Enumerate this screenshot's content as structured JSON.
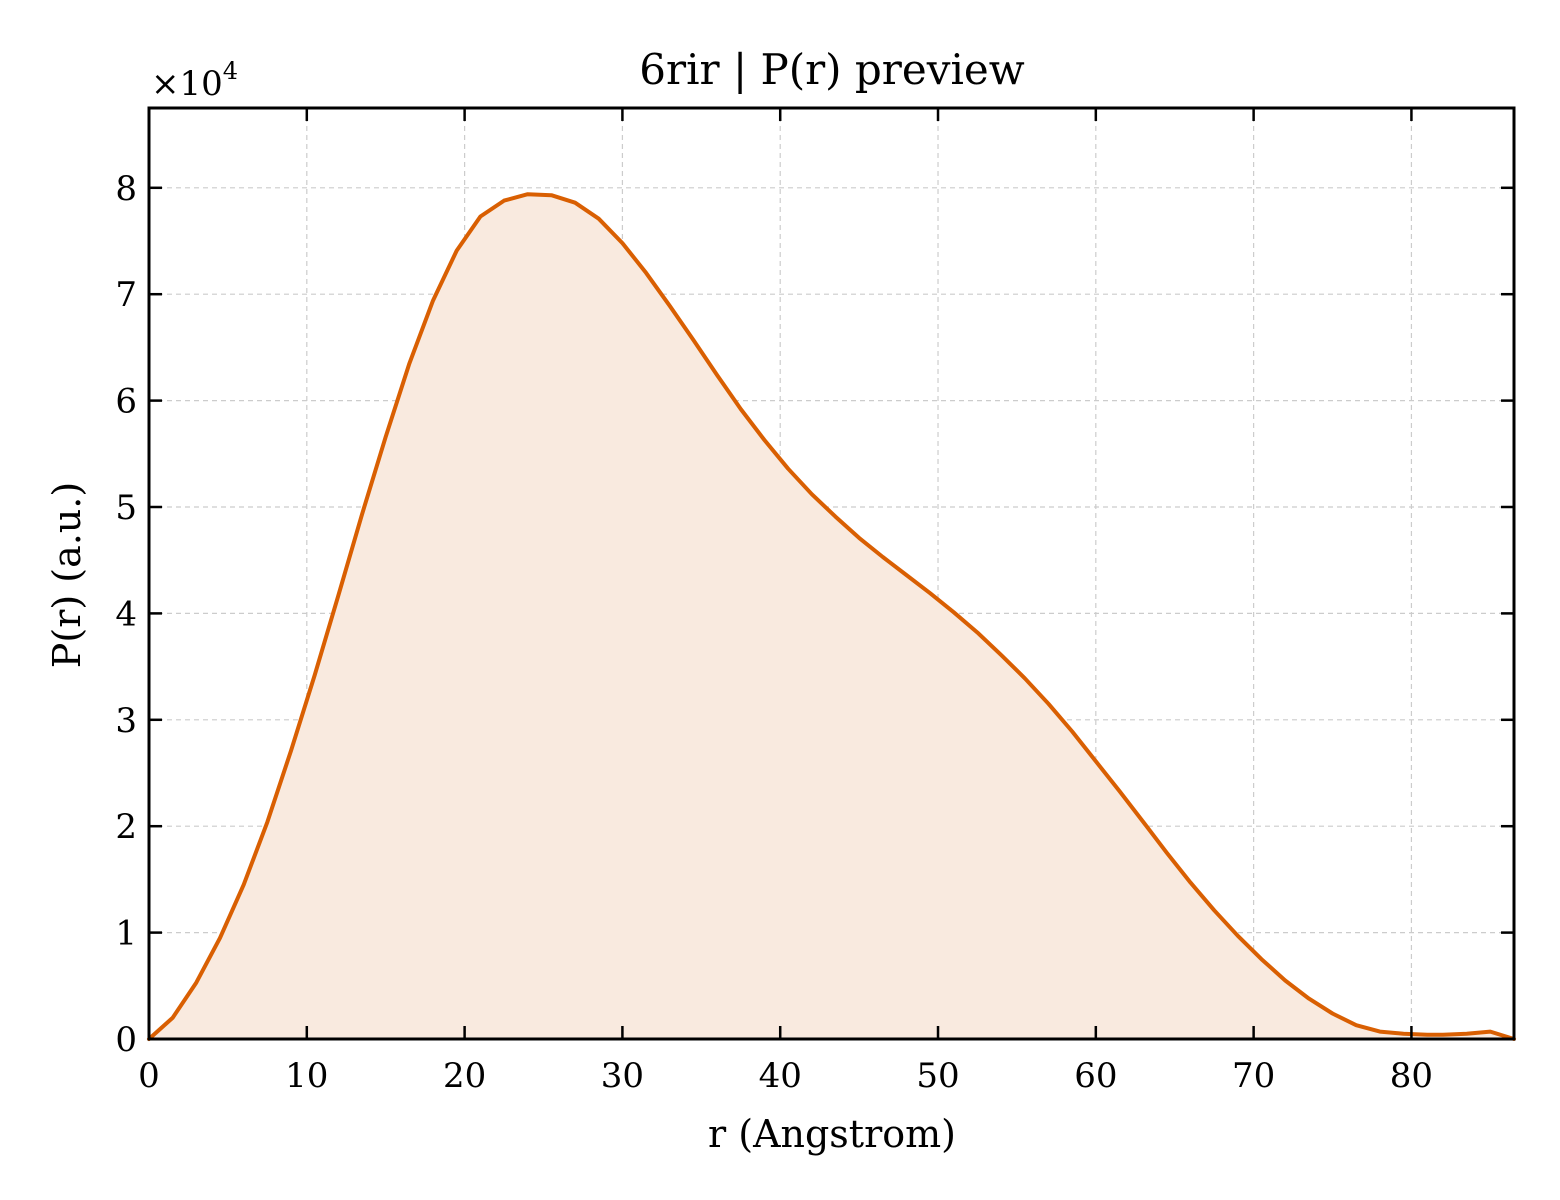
{
  "chart_data": {
    "type": "area",
    "title": "6rir | P(r) preview",
    "xlabel": "r (Angstrom)",
    "ylabel": "P(r) (a.u.)",
    "y_multiplier_label": "×10",
    "y_multiplier_exponent": "4",
    "xlim": [
      0,
      86.5
    ],
    "ylim": [
      0,
      8.75
    ],
    "x_ticks": [
      0,
      10,
      20,
      30,
      40,
      50,
      60,
      70,
      80
    ],
    "y_ticks": [
      0,
      1,
      2,
      3,
      4,
      5,
      6,
      7,
      8
    ],
    "grid": true,
    "line_color": "#d95f02",
    "fill_color": "#f9eadf",
    "x": [
      0,
      1.5,
      3.0,
      4.5,
      6.0,
      7.5,
      9.0,
      10.5,
      12.0,
      13.5,
      15.0,
      16.5,
      18.0,
      19.5,
      21.0,
      22.5,
      24.0,
      25.5,
      27.0,
      28.5,
      30.0,
      31.5,
      33.0,
      34.5,
      36.0,
      37.5,
      39.0,
      40.5,
      42.0,
      43.5,
      45.0,
      46.5,
      48.0,
      49.5,
      51.0,
      52.5,
      54.0,
      55.5,
      57.0,
      58.5,
      60.0,
      61.5,
      63.0,
      64.5,
      66.0,
      67.5,
      69.0,
      70.5,
      72.0,
      73.5,
      75.0,
      76.5,
      78.0,
      79.5,
      81.0,
      82.0,
      83.5,
      85.0,
      86.5
    ],
    "y": [
      0,
      0.2,
      0.53,
      0.95,
      1.45,
      2.04,
      2.71,
      3.42,
      4.17,
      4.93,
      5.66,
      6.35,
      6.94,
      7.41,
      7.73,
      7.88,
      7.94,
      7.93,
      7.86,
      7.71,
      7.48,
      7.2,
      6.89,
      6.57,
      6.24,
      5.92,
      5.63,
      5.36,
      5.12,
      4.91,
      4.71,
      4.53,
      4.36,
      4.19,
      4.01,
      3.82,
      3.61,
      3.39,
      3.15,
      2.89,
      2.61,
      2.33,
      2.04,
      1.75,
      1.47,
      1.21,
      0.97,
      0.75,
      0.55,
      0.38,
      0.24,
      0.13,
      0.07,
      0.05,
      0.04,
      0.04,
      0.05,
      0.07,
      0.0
    ]
  }
}
